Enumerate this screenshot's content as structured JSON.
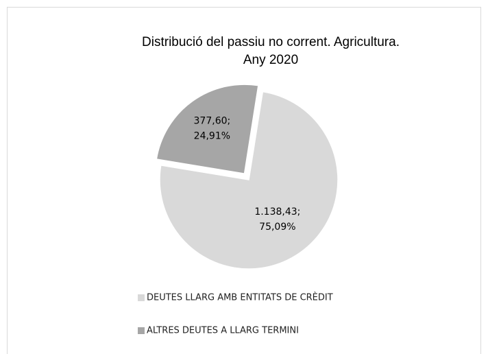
{
  "chart_data": {
    "type": "pie",
    "title": [
      "Distribució del passiu no corrent. Agricultura.",
      "Any 2020"
    ],
    "categories": [
      "DEUTES LLARG AMB ENTITATS DE CRÈDIT",
      "ALTRES DEUTES A LLARG TERMINI"
    ],
    "values": [
      1138.43,
      377.6
    ],
    "value_labels": [
      "1.138,43;",
      "377,60;"
    ],
    "percentages": [
      75.09,
      24.91
    ],
    "percentage_labels": [
      "75,09%",
      "24,91%"
    ],
    "colors": [
      "#d9d9d9",
      "#a6a6a6"
    ],
    "legend": "bottom"
  }
}
